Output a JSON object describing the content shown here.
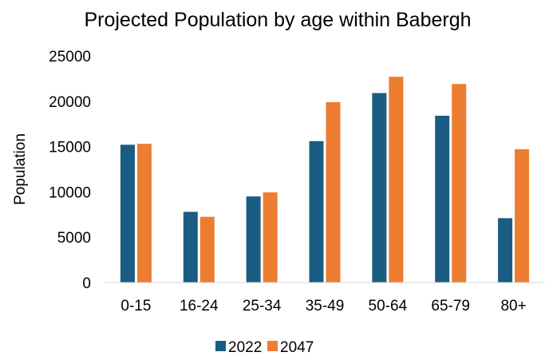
{
  "chart_data": {
    "type": "bar",
    "title": "Projected Population by age within Babergh",
    "ylabel": "Population",
    "xlabel": "",
    "categories": [
      "0-15",
      "16-24",
      "25-34",
      "35-49",
      "50-64",
      "65-79",
      "80+"
    ],
    "series": [
      {
        "name": "2022",
        "color": "#1b5d82",
        "values": [
          15200,
          7800,
          9500,
          15600,
          20900,
          18400,
          7100
        ]
      },
      {
        "name": "2047",
        "color": "#ed7d31",
        "values": [
          15300,
          7250,
          9950,
          19900,
          22700,
          21900,
          14700
        ]
      }
    ],
    "ylim": [
      0,
      25000
    ],
    "yticks": [
      0,
      5000,
      10000,
      15000,
      20000,
      25000
    ],
    "grid": false,
    "legend_position": "bottom"
  }
}
